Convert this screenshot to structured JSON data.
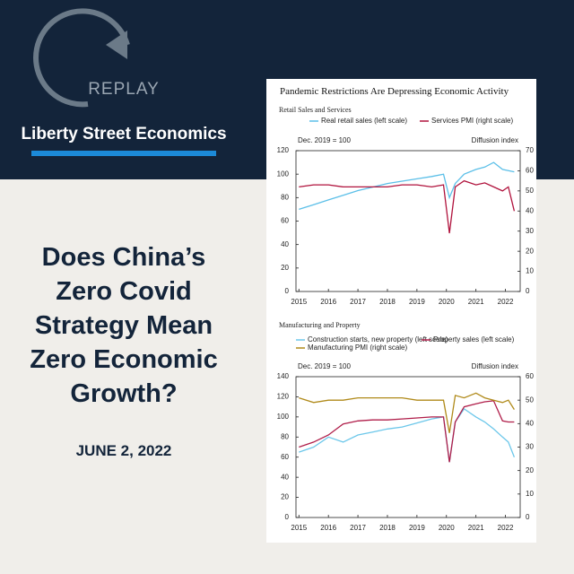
{
  "replay": "REPLAY",
  "brand": "Liberty Street Economics",
  "headline_lines": [
    "Does China’s",
    "Zero Covid",
    "Strategy Mean",
    "Zero Economic",
    "Growth?"
  ],
  "date": "JUNE 2, 2022",
  "figure_title": "Pandemic Restrictions Are Depressing Economic Activity",
  "chart_data": [
    {
      "type": "line",
      "title": "Retail Sales and Services",
      "y_label": "Dec. 2019 = 100",
      "y2_label": "Diffusion index",
      "x": [
        2015,
        2015.5,
        2016,
        2016.5,
        2017,
        2017.5,
        2018,
        2018.5,
        2019,
        2019.5,
        2019.9,
        2020.1,
        2020.3,
        2020.6,
        2021,
        2021.3,
        2021.6,
        2021.9,
        2022.1,
        2022.3
      ],
      "xlim": [
        2014.9,
        2022.5
      ],
      "xticks": [
        2015,
        2016,
        2017,
        2018,
        2019,
        2020,
        2021,
        2022
      ],
      "ylim": [
        0,
        120
      ],
      "yticks": [
        0,
        20,
        40,
        60,
        80,
        100,
        120
      ],
      "y2lim": [
        0,
        70
      ],
      "y2ticks": [
        0,
        10,
        20,
        30,
        40,
        50,
        60,
        70
      ],
      "series": [
        {
          "name": "Real retail sales (left scale)",
          "color": "#5bbfe8",
          "values": [
            70,
            74,
            78,
            82,
            86,
            89,
            92,
            94,
            96,
            98,
            100,
            80,
            92,
            100,
            104,
            106,
            110,
            104,
            103,
            102
          ]
        },
        {
          "name": "Services PMI (right scale)",
          "color": "#b0123c",
          "axis": "y2",
          "values": [
            52,
            53,
            53,
            52,
            52,
            52,
            52,
            53,
            53,
            52,
            53,
            29,
            52,
            55,
            53,
            54,
            52,
            50,
            52,
            40
          ]
        }
      ]
    },
    {
      "type": "line",
      "title": "Manufacturing and Property",
      "y_label": "Dec. 2019 = 100",
      "y2_label": "Diffusion index",
      "x": [
        2015,
        2015.5,
        2016,
        2016.5,
        2017,
        2017.5,
        2018,
        2018.5,
        2019,
        2019.5,
        2019.9,
        2020.1,
        2020.3,
        2020.6,
        2021,
        2021.3,
        2021.6,
        2021.9,
        2022.1,
        2022.3
      ],
      "xlim": [
        2014.9,
        2022.5
      ],
      "xticks": [
        2015,
        2016,
        2017,
        2018,
        2019,
        2020,
        2021,
        2022
      ],
      "ylim": [
        0,
        140
      ],
      "yticks": [
        0,
        20,
        40,
        60,
        80,
        100,
        120,
        140
      ],
      "y2lim": [
        0,
        60
      ],
      "y2ticks": [
        0,
        10,
        20,
        30,
        40,
        50,
        60
      ],
      "series": [
        {
          "name": "Construction starts, new property (left scale)",
          "color": "#6cc7ea",
          "values": [
            65,
            70,
            80,
            75,
            82,
            85,
            88,
            90,
            94,
            98,
            100,
            55,
            95,
            108,
            100,
            95,
            88,
            80,
            75,
            60
          ]
        },
        {
          "name": "Property sales (left scale)",
          "color": "#b01e4a",
          "values": [
            70,
            75,
            82,
            93,
            96,
            97,
            97,
            98,
            99,
            100,
            100,
            55,
            95,
            110,
            113,
            115,
            116,
            96,
            95,
            95
          ]
        },
        {
          "name": "Manufacturing PMI (right scale)",
          "color": "#b08a1a",
          "axis": "y2",
          "values": [
            51,
            49,
            50,
            50,
            51,
            51,
            51,
            51,
            50,
            50,
            50,
            36,
            52,
            51,
            53,
            51,
            50,
            49,
            50,
            46
          ]
        }
      ]
    }
  ]
}
